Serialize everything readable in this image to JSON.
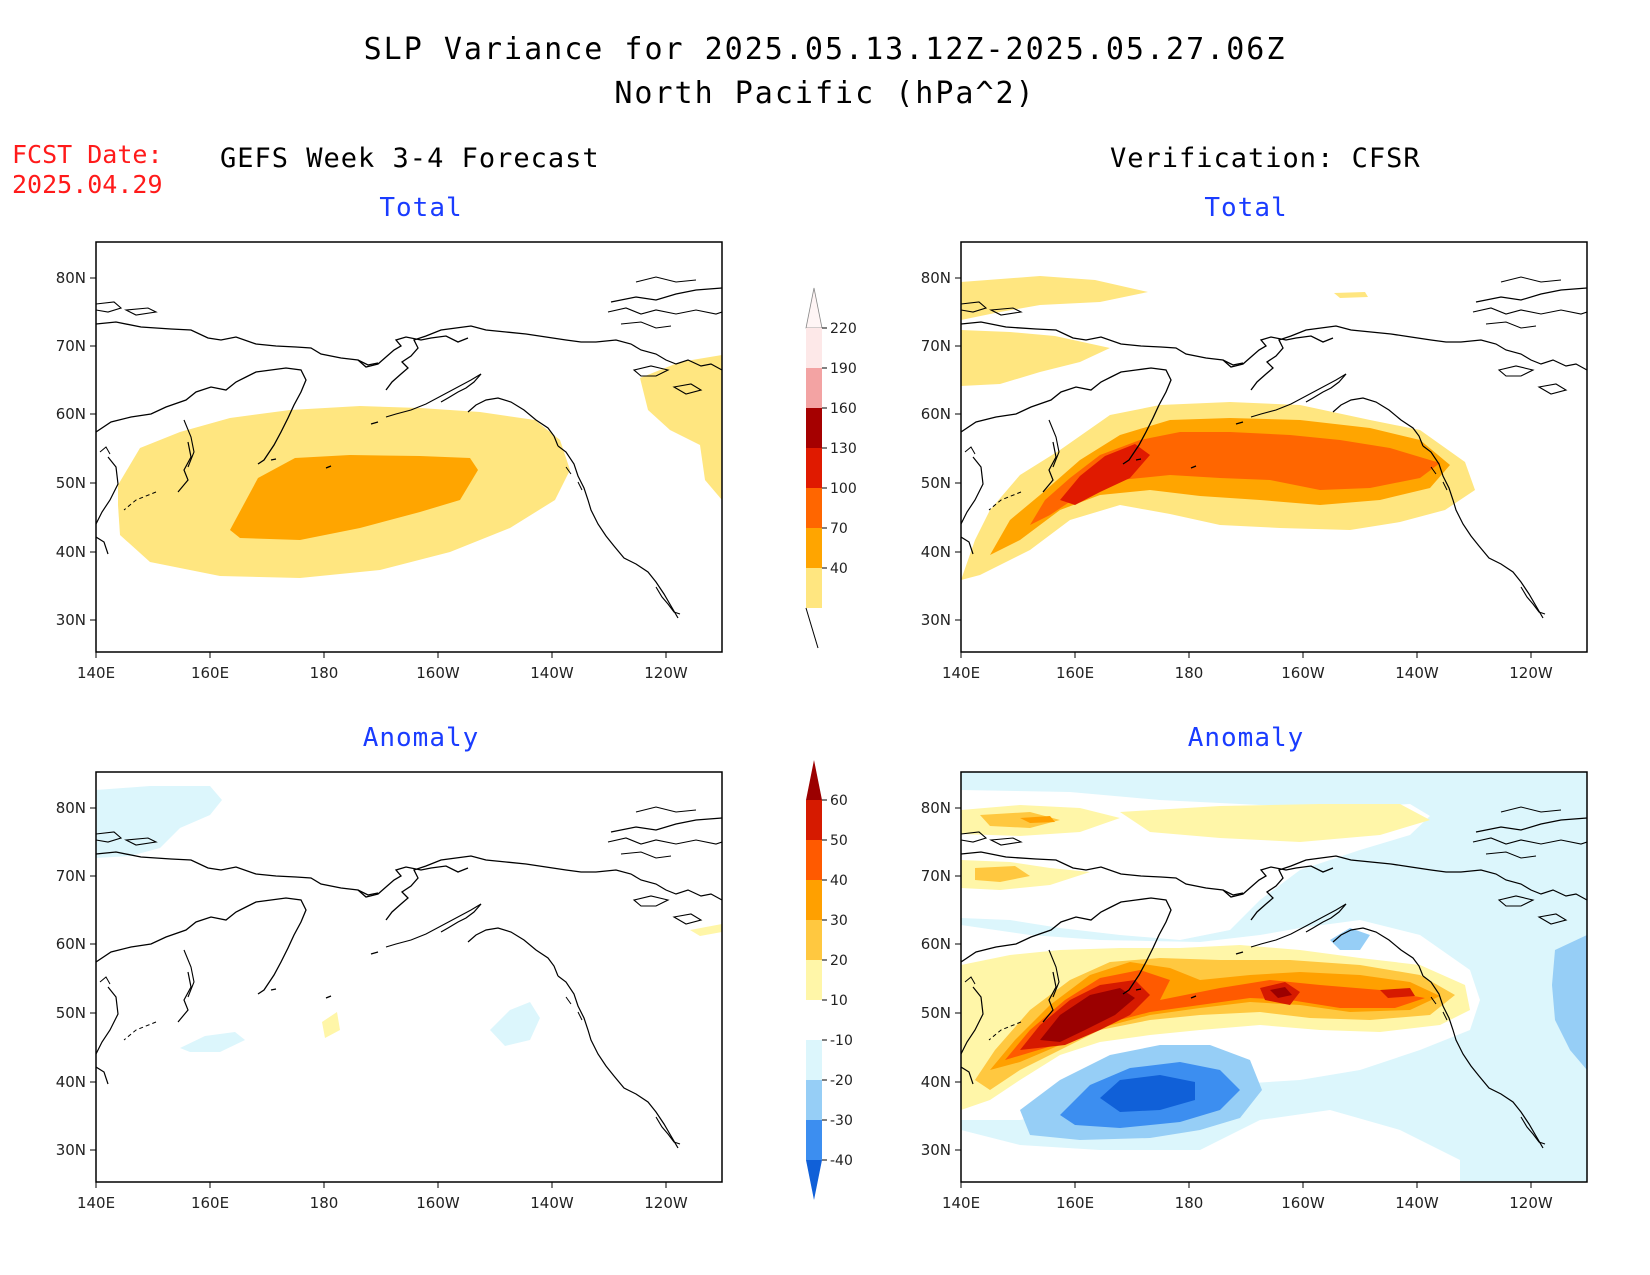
{
  "title_line1": "SLP Variance for 2025.05.13.12Z-2025.05.27.06Z",
  "title_line2": "North Pacific (hPa^2)",
  "fcst_label": "FCST Date:",
  "fcst_date": "2025.04.29",
  "left_column_title": "GEFS Week 3-4 Forecast",
  "right_column_title": "Verification: CFSR",
  "panels": {
    "forecast_total": {
      "title": "Total"
    },
    "verification_total": {
      "title": "Total"
    },
    "forecast_anomaly": {
      "title": "Anomaly"
    },
    "verification_anomaly": {
      "title": "Anomaly"
    }
  },
  "map_axes": {
    "lon_labels": [
      "140E",
      "160E",
      "180",
      "160W",
      "140W",
      "120W"
    ],
    "lat_labels": [
      "80N",
      "70N",
      "60N",
      "50N",
      "40N",
      "30N"
    ]
  },
  "colorbars": {
    "total": {
      "labels": [
        "220",
        "190",
        "160",
        "130",
        "100",
        "70",
        "40"
      ],
      "colors": [
        "#fde8e8",
        "#f3a3a3",
        "#a50000",
        "#e01a00",
        "#ff6600",
        "#ffa500",
        "#ffe680"
      ]
    },
    "anomaly": {
      "labels": [
        "60",
        "50",
        "40",
        "30",
        "20",
        "10",
        "-10",
        "-20",
        "-30",
        "-40"
      ],
      "colors": [
        "#9b0000",
        "#d61a00",
        "#ff5a00",
        "#ffa000",
        "#ffc840",
        "#fff6a8",
        "#ffffff",
        "#dcf6fc",
        "#96cef6",
        "#3c8ef0",
        "#1060d8"
      ]
    }
  }
}
